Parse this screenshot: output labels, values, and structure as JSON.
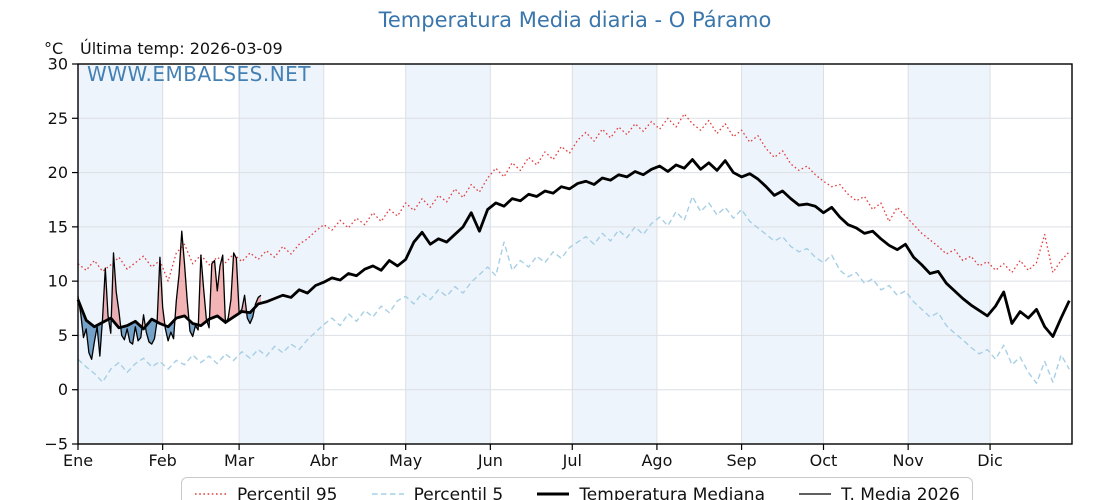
{
  "header": {
    "title": "Temperatura Media diaria - O Páramo",
    "y_unit": "°C",
    "last_temp_label": "Última temp: 2026-03-09",
    "watermark": "WWW.EMBALSES.NET"
  },
  "legend": {
    "items": [
      {
        "label": "Percentil 95",
        "sample": "red-dotted-line"
      },
      {
        "label": "Percentil 5",
        "sample": "lightblue-dashed-line"
      },
      {
        "label": "Temperatura Mediana",
        "sample": "black-thick-line"
      },
      {
        "label": "T. Media 2026",
        "sample": "black-thin-line"
      }
    ]
  },
  "colors": {
    "title_blue": "#3a76ab",
    "watermark_blue": "#3b7ab0",
    "p95_red": "#e03e3e",
    "p5_lightblue": "#a6cfe5",
    "median_black": "#000000",
    "t2026_black": "#000000",
    "band_shade": "#eef4fb",
    "grid": "#dcdfe4",
    "fill_above": "rgba(226,88,92,0.45)",
    "fill_below": "rgba(70,130,180,0.72)"
  },
  "chart_data": {
    "type": "line",
    "title": "Temperatura Media diaria - O Páramo",
    "xlabel": "",
    "ylabel": "°C",
    "ylim": [
      -5,
      30
    ],
    "y_tick_values": [
      30,
      25,
      20,
      15,
      10,
      5,
      0,
      -5
    ],
    "y_tick_labels": [
      "30",
      "25",
      "20",
      "15",
      "10",
      "5",
      "0",
      "−5"
    ],
    "x_months": [
      "Ene",
      "Feb",
      "Mar",
      "Abr",
      "May",
      "Jun",
      "Jul",
      "Ago",
      "Sep",
      "Oct",
      "Nov",
      "Dic"
    ],
    "month_start_days": [
      1,
      32,
      60,
      91,
      121,
      152,
      182,
      213,
      244,
      274,
      305,
      335
    ],
    "shaded_month_indices": [
      0,
      2,
      4,
      6,
      8,
      10
    ],
    "days_in_year": 365,
    "grid": true,
    "legend_position": "bottom",
    "climatology_days": [
      1,
      4,
      7,
      10,
      13,
      16,
      19,
      22,
      25,
      28,
      31,
      34,
      37,
      40,
      43,
      46,
      49,
      52,
      55,
      58,
      61,
      64,
      67,
      70,
      73,
      76,
      79,
      82,
      85,
      88,
      91,
      94,
      97,
      100,
      103,
      106,
      109,
      112,
      115,
      118,
      121,
      124,
      127,
      130,
      133,
      136,
      139,
      142,
      145,
      148,
      151,
      154,
      157,
      160,
      163,
      166,
      169,
      172,
      175,
      178,
      181,
      184,
      187,
      190,
      193,
      196,
      199,
      202,
      205,
      208,
      211,
      214,
      217,
      220,
      223,
      226,
      229,
      232,
      235,
      238,
      241,
      244,
      247,
      250,
      253,
      256,
      259,
      262,
      265,
      268,
      271,
      274,
      277,
      280,
      283,
      286,
      289,
      292,
      295,
      298,
      301,
      304,
      307,
      310,
      313,
      316,
      319,
      322,
      325,
      328,
      331,
      334,
      337,
      340,
      343,
      346,
      349,
      352,
      355,
      358,
      361,
      364
    ],
    "series": [
      {
        "name": "Percentil 95",
        "style": "dotted",
        "color": "#e03e3e",
        "width": 1.3,
        "values": [
          11.6,
          11.0,
          11.9,
          10.9,
          11.5,
          12.2,
          11.1,
          11.7,
          12.3,
          11.3,
          11.9,
          10.0,
          12.6,
          13.4,
          11.6,
          12.4,
          11.5,
          12.2,
          11.7,
          12.5,
          11.8,
          12.6,
          12.0,
          12.8,
          12.2,
          13.2,
          12.5,
          13.4,
          13.9,
          14.6,
          15.2,
          14.7,
          15.6,
          14.9,
          15.8,
          15.2,
          16.3,
          15.5,
          16.6,
          16.0,
          17.2,
          16.5,
          17.6,
          16.8,
          17.9,
          17.3,
          18.5,
          17.7,
          18.9,
          18.2,
          19.5,
          20.4,
          19.6,
          20.9,
          20.2,
          21.4,
          20.7,
          21.9,
          21.2,
          22.4,
          21.8,
          23.0,
          23.7,
          22.9,
          24.0,
          23.2,
          24.2,
          23.5,
          24.5,
          23.8,
          24.7,
          24.0,
          25.0,
          24.2,
          25.4,
          24.5,
          23.9,
          24.8,
          23.6,
          24.5,
          23.3,
          23.9,
          22.8,
          23.4,
          22.2,
          21.4,
          22.0,
          20.8,
          20.2,
          20.6,
          19.8,
          19.2,
          18.7,
          18.9,
          18.0,
          17.4,
          17.8,
          16.6,
          17.2,
          15.5,
          16.8,
          16.0,
          15.2,
          14.4,
          13.8,
          13.2,
          12.5,
          12.9,
          11.9,
          12.3,
          11.4,
          11.8,
          11.0,
          11.6,
          10.8,
          11.9,
          11.0,
          11.7,
          14.3,
          10.8,
          11.9,
          12.7
        ]
      },
      {
        "name": "Percentil 5",
        "style": "dashed",
        "color": "#a6cfe5",
        "width": 1.4,
        "values": [
          2.8,
          2.1,
          1.5,
          0.7,
          1.9,
          2.5,
          1.6,
          2.4,
          2.9,
          2.1,
          2.6,
          1.9,
          2.7,
          2.3,
          3.2,
          2.5,
          3.1,
          2.4,
          3.3,
          2.7,
          3.5,
          2.9,
          3.7,
          3.1,
          4.0,
          3.4,
          4.2,
          3.7,
          4.6,
          5.3,
          6.0,
          6.6,
          5.9,
          7.0,
          6.3,
          7.3,
          6.7,
          7.7,
          7.1,
          8.2,
          8.6,
          7.9,
          8.9,
          8.3,
          9.2,
          8.6,
          9.5,
          8.9,
          9.9,
          10.6,
          11.3,
          10.5,
          13.6,
          11.0,
          11.9,
          11.3,
          12.3,
          11.7,
          12.7,
          12.1,
          13.1,
          13.6,
          14.1,
          13.4,
          14.4,
          13.7,
          14.7,
          14.0,
          15.0,
          14.3,
          15.3,
          15.9,
          15.1,
          16.4,
          15.6,
          17.8,
          16.4,
          17.2,
          16.1,
          16.8,
          15.8,
          16.6,
          15.5,
          14.9,
          14.3,
          13.7,
          14.1,
          13.2,
          12.7,
          13.0,
          12.2,
          11.7,
          12.4,
          11.0,
          10.4,
          10.8,
          9.8,
          10.2,
          9.2,
          9.6,
          8.7,
          9.1,
          8.1,
          7.4,
          6.7,
          7.1,
          5.9,
          5.2,
          4.6,
          3.9,
          3.3,
          3.7,
          2.8,
          4.1,
          2.3,
          3.0,
          1.6,
          0.6,
          2.6,
          0.7,
          3.2,
          1.9
        ]
      },
      {
        "name": "Temperatura Mediana",
        "style": "solid",
        "color": "#000000",
        "width": 2.8,
        "values": [
          8.3,
          6.4,
          5.8,
          6.2,
          6.6,
          5.7,
          5.9,
          6.3,
          5.6,
          6.5,
          6.1,
          5.8,
          6.6,
          6.8,
          6.1,
          5.9,
          6.5,
          6.8,
          6.2,
          6.7,
          7.2,
          7.1,
          7.9,
          8.1,
          8.4,
          8.7,
          8.5,
          9.2,
          8.9,
          9.6,
          9.9,
          10.3,
          10.1,
          10.7,
          10.5,
          11.1,
          11.4,
          11.0,
          11.9,
          11.4,
          12.0,
          13.6,
          14.5,
          13.4,
          13.9,
          13.6,
          14.3,
          15.0,
          16.3,
          14.6,
          16.6,
          17.2,
          16.9,
          17.6,
          17.4,
          18.0,
          17.8,
          18.3,
          18.1,
          18.7,
          18.5,
          19.0,
          19.2,
          18.9,
          19.5,
          19.3,
          19.8,
          19.6,
          20.1,
          19.8,
          20.3,
          20.6,
          20.1,
          20.7,
          20.4,
          21.2,
          20.3,
          20.9,
          20.2,
          21.1,
          20.0,
          19.6,
          19.9,
          19.4,
          18.7,
          17.9,
          18.3,
          17.6,
          17.0,
          17.1,
          16.9,
          16.3,
          16.8,
          15.9,
          15.2,
          14.9,
          14.4,
          14.6,
          13.9,
          13.3,
          12.9,
          13.4,
          12.2,
          11.5,
          10.7,
          10.9,
          9.8,
          9.1,
          8.4,
          7.8,
          7.3,
          6.8,
          7.7,
          9.0,
          6.1,
          7.2,
          6.6,
          7.4,
          5.8,
          4.9,
          6.6,
          8.2
        ]
      },
      {
        "name": "T. Media 2026",
        "style": "solid",
        "color": "#000000",
        "width": 1.3,
        "days": [
          1,
          2,
          3,
          4,
          5,
          6,
          7,
          8,
          9,
          10,
          11,
          12,
          13,
          14,
          15,
          16,
          17,
          18,
          19,
          20,
          21,
          22,
          23,
          24,
          25,
          26,
          27,
          28,
          29,
          30,
          31,
          32,
          33,
          34,
          35,
          36,
          37,
          38,
          39,
          40,
          41,
          42,
          43,
          44,
          45,
          46,
          47,
          48,
          49,
          50,
          51,
          52,
          53,
          54,
          55,
          56,
          57,
          58,
          59,
          60,
          61,
          62,
          63,
          64,
          65,
          66,
          67,
          68
        ],
        "values": [
          8.6,
          7.0,
          4.8,
          5.6,
          3.4,
          2.8,
          4.4,
          5.8,
          3.1,
          6.6,
          11.2,
          6.8,
          5.2,
          12.6,
          9.0,
          7.2,
          5.0,
          4.6,
          5.6,
          4.4,
          4.2,
          5.8,
          4.5,
          4.8,
          6.9,
          5.3,
          4.4,
          4.2,
          4.7,
          6.4,
          12.2,
          7.6,
          5.6,
          4.5,
          5.3,
          4.7,
          8.2,
          10.6,
          14.6,
          11.6,
          8.2,
          5.4,
          4.9,
          5.9,
          5.5,
          12.4,
          9.3,
          6.5,
          5.7,
          11.6,
          11.9,
          9.1,
          11.4,
          12.4,
          6.1,
          6.6,
          8.3,
          12.6,
          12.1,
          7.1,
          7.4,
          8.7,
          6.6,
          6.1,
          6.7,
          7.9,
          8.5,
          8.7
        ]
      }
    ],
    "fill_between": {
      "upper": "T. Media 2026",
      "lower": "Temperatura Mediana",
      "above_color": "rgba(226,88,92,0.45)",
      "below_color": "rgba(70,130,180,0.72)"
    }
  }
}
